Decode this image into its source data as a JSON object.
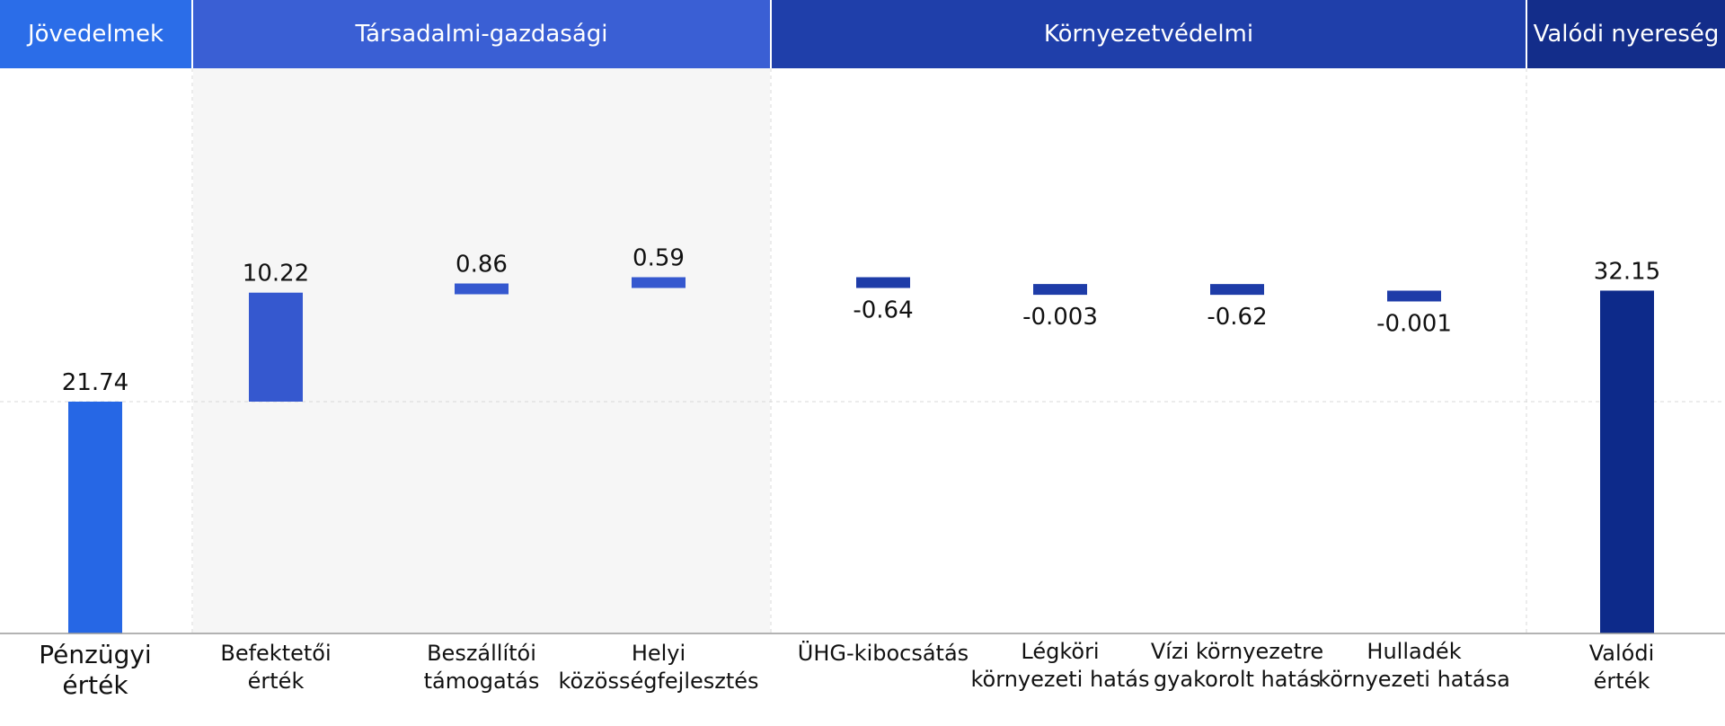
{
  "sections": [
    {
      "label": "Jövedelmek",
      "color": "#2b6de8"
    },
    {
      "label": "Társadalmi-gazdasági",
      "color": "#3a5fd4"
    },
    {
      "label": "Környezetvédelmi",
      "color": "#1f3faa"
    },
    {
      "label": "Valódi nyereség",
      "color": "#132d8a"
    }
  ],
  "chart_data": {
    "type": "bar",
    "subtype": "waterfall",
    "categories": [
      "Pénzügyi\nérték",
      "Befektetői\nérték",
      "Beszállítói\ntámogatás",
      "Helyi\nközösségfejlesztés",
      "ÜHG-kibocsátás",
      "Légköri\nkörnyezeti hatás",
      "Vízi környezetre\ngyakorolt hatás",
      "Hulladék\nkörnyezeti hatása",
      "Valódi\nérték"
    ],
    "values": [
      21.74,
      10.22,
      0.86,
      0.59,
      -0.64,
      -0.003,
      -0.62,
      -0.001,
      32.15
    ],
    "value_labels": [
      "21.74",
      "10.22",
      "0.86",
      "0.59",
      "-0.64",
      "-0.003",
      "-0.62",
      "-0.001",
      "32.15"
    ],
    "bar_kind": [
      "total",
      "delta",
      "delta",
      "delta",
      "delta",
      "delta",
      "delta",
      "delta",
      "total"
    ],
    "bar_section": [
      0,
      1,
      1,
      1,
      2,
      2,
      2,
      2,
      3
    ],
    "colors": {
      "revenue": "#2667e5",
      "socio": "#3558cf",
      "env": "#1e3ca8",
      "total": "#0d2a8a",
      "shaded_bg": "#f6f6f6",
      "grid": "#d8d8d8",
      "axis": "#9a9a9a"
    },
    "grid": true,
    "legend": "none"
  }
}
